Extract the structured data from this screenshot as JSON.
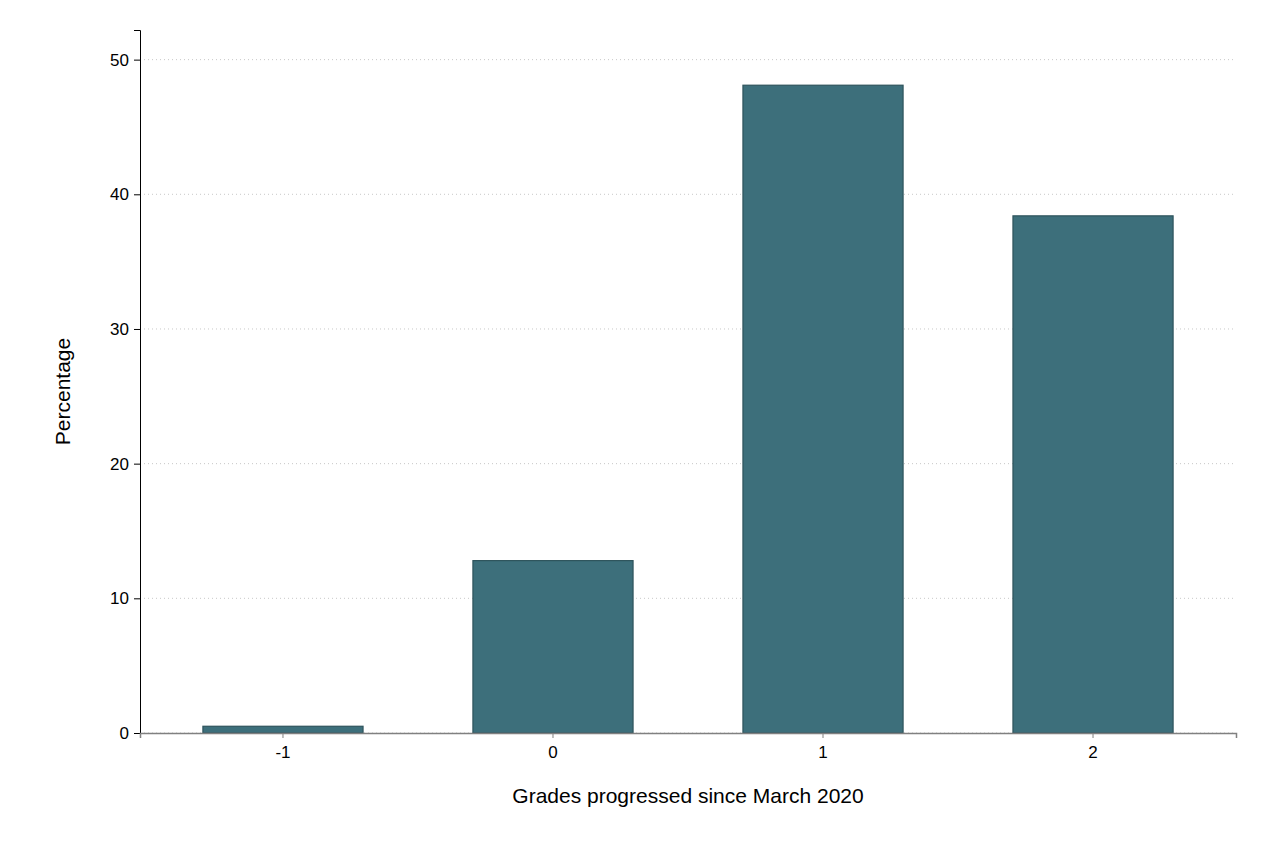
{
  "chart_data": {
    "type": "bar",
    "x_label": "Grades progressed since March 2020",
    "y_label": "Percentage",
    "categories": [
      "-1",
      "0",
      "1",
      "2"
    ],
    "values": [
      0.5,
      12.8,
      48.1,
      38.4
    ],
    "color": "#3d6f7b",
    "ylim": [
      0,
      52.2
    ],
    "yticks": [
      0,
      10,
      20,
      30,
      40,
      50
    ],
    "grid": true
  }
}
